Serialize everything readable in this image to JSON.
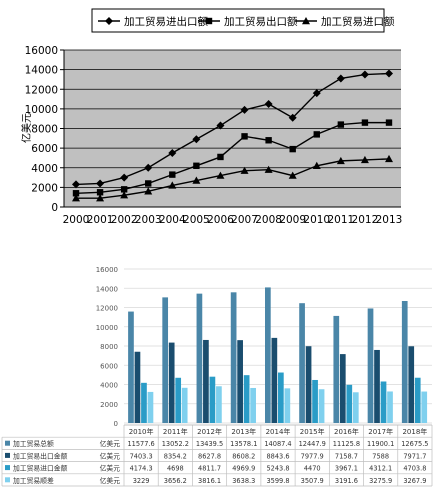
{
  "chart_data": [
    {
      "type": "line",
      "ylabel": "亿美元",
      "x": [
        "2000",
        "2001",
        "2002",
        "2003",
        "2004",
        "2005",
        "2006",
        "2007",
        "2008",
        "2009",
        "2010",
        "2011",
        "2012",
        "2013"
      ],
      "ylim": [
        0,
        16000
      ],
      "yticks": [
        0,
        2000,
        4000,
        6000,
        8000,
        10000,
        12000,
        14000,
        16000
      ],
      "grid": true,
      "legend_position": "top",
      "plot_background": "#c0c0c0",
      "series": [
        {
          "name": "加工贸易进出口额",
          "marker": "diamond",
          "values": [
            2300,
            2400,
            3000,
            4000,
            5500,
            6900,
            8300,
            9900,
            10500,
            9100,
            11600,
            13100,
            13500,
            13600
          ]
        },
        {
          "name": "加工贸易出口额",
          "marker": "square",
          "values": [
            1400,
            1500,
            1800,
            2400,
            3300,
            4200,
            5100,
            7200,
            6800,
            5900,
            7400,
            8400,
            8600,
            8600
          ]
        },
        {
          "name": "加工贸易进口额",
          "marker": "triangle",
          "values": [
            900,
            900,
            1200,
            1600,
            2200,
            2700,
            3200,
            3700,
            3800,
            3200,
            4200,
            4700,
            4800,
            4900
          ]
        }
      ]
    },
    {
      "type": "bar",
      "categories": [
        "2010年",
        "2011年",
        "2012年",
        "2013年",
        "2014年",
        "2015年",
        "2016年",
        "2017年",
        "2018年"
      ],
      "ylim": [
        0,
        16000
      ],
      "yticks": [
        0,
        2000,
        4000,
        6000,
        8000,
        10000,
        12000,
        14000,
        16000
      ],
      "grid": true,
      "legend_position": "bottom-table",
      "series": [
        {
          "name": "加工贸易总额",
          "unit": "亿美元",
          "color": "#4a86a8",
          "values": [
            11577.6,
            13052.2,
            13439.5,
            13578.1,
            14087.4,
            12447.9,
            11125.8,
            11900.1,
            12675.5
          ],
          "labels": [
            "11577.6",
            "13052.2",
            "13439.5",
            "13578.1",
            "14087.4",
            "12447.9",
            "11125.8",
            "11900.1",
            "12675.5"
          ]
        },
        {
          "name": "加工贸易出口金额",
          "unit": "亿美元",
          "color": "#1a4d6e",
          "values": [
            7403.3,
            8354.2,
            8627.8,
            8608.2,
            8843.6,
            7977.9,
            7158.7,
            7588,
            7971.7
          ],
          "labels": [
            "7403.3",
            "8354.2",
            "8627.8",
            "8608.2",
            "8843.6",
            "7977.9",
            "7158.7",
            "7588",
            "7971.7"
          ]
        },
        {
          "name": "加工贸易进口金额",
          "unit": "亿美元",
          "color": "#2a9cc7",
          "values": [
            4174.3,
            4698,
            4811.7,
            4969.9,
            5243.8,
            4470,
            3967.1,
            4312.1,
            4703.8
          ],
          "labels": [
            "4174.3",
            "4698",
            "4811.7",
            "4969.9",
            "5243.8",
            "4470",
            "3967.1",
            "4312.1",
            "4703.8"
          ]
        },
        {
          "name": "加工贸易顺差",
          "unit": "亿美元",
          "color": "#7fd0ee",
          "values": [
            3229,
            3656.2,
            3816.1,
            3638.3,
            3599.8,
            3507.9,
            3191.6,
            3275.9,
            3267.9
          ],
          "labels": [
            "3229",
            "3656.2",
            "3816.1",
            "3638.3",
            "3599.8",
            "3507.9",
            "3191.6",
            "3275.9",
            "3267.9"
          ]
        }
      ]
    }
  ]
}
